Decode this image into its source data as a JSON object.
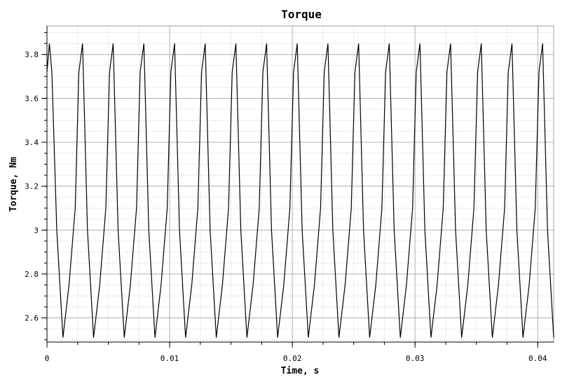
{
  "chart_data": {
    "type": "line",
    "title": "Torque",
    "xlabel": "Time, s",
    "ylabel": "Torque, Nm",
    "xlim": [
      0,
      0.0413
    ],
    "ylim": [
      2.49,
      3.93
    ],
    "x_ticks": [
      0,
      0.01,
      0.02,
      0.03,
      0.04
    ],
    "x_tick_labels": [
      "0",
      "0.01",
      "0.02",
      "0.03",
      "0.04"
    ],
    "y_ticks": [
      2.6,
      2.8,
      3.0,
      3.2,
      3.4,
      3.6,
      3.8
    ],
    "y_tick_labels": [
      "2.6",
      "2.8",
      "3",
      "3.2",
      "3.4",
      "3.6",
      "3.8"
    ],
    "grid": true,
    "line_color": "#000000",
    "series": [
      {
        "x": [
          0,
          0.0002,
          0.0004,
          0.0008,
          0.0013,
          0.0018,
          0.0023,
          0.0026,
          0.0029,
          0.0033,
          0.0038,
          0.0043,
          0.0048,
          0.0051,
          0.0054,
          0.0058,
          0.0063,
          0.0068,
          0.0073,
          0.0076,
          0.0079,
          0.0083,
          0.0088,
          0.0093,
          0.0098,
          0.0101,
          0.0104,
          0.0108,
          0.0113,
          0.0118,
          0.0123,
          0.0126,
          0.0129,
          0.0133,
          0.0138,
          0.0143,
          0.0148,
          0.0151,
          0.0154,
          0.0158,
          0.0163,
          0.0168,
          0.0173,
          0.0176,
          0.0179,
          0.0183,
          0.0188,
          0.0193,
          0.0198,
          0.0201,
          0.0204,
          0.0208,
          0.0213,
          0.0218,
          0.0223,
          0.0226,
          0.0229,
          0.0233,
          0.0238,
          0.0243,
          0.0248,
          0.0251,
          0.0254,
          0.0258,
          0.0263,
          0.0268,
          0.0273,
          0.0276,
          0.0279,
          0.0283,
          0.0288,
          0.0293,
          0.0298,
          0.0301,
          0.0304,
          0.0308,
          0.0313,
          0.0318,
          0.0323,
          0.0326,
          0.0329,
          0.0333,
          0.0338,
          0.0343,
          0.0348,
          0.0351,
          0.0354,
          0.0358,
          0.0363,
          0.0368,
          0.0373,
          0.0376,
          0.0379,
          0.0383,
          0.0388,
          0.0393,
          0.0398,
          0.0401,
          0.0404,
          0.0408,
          0.0413
        ],
        "y": [
          3.72,
          3.85,
          3.72,
          3.0,
          2.51,
          2.75,
          3.1,
          3.72,
          3.85,
          3.0,
          2.51,
          2.75,
          3.1,
          3.72,
          3.85,
          3.0,
          2.51,
          2.75,
          3.1,
          3.72,
          3.85,
          3.0,
          2.51,
          2.75,
          3.1,
          3.72,
          3.85,
          3.0,
          2.51,
          2.75,
          3.1,
          3.72,
          3.85,
          3.0,
          2.51,
          2.75,
          3.1,
          3.72,
          3.85,
          3.0,
          2.51,
          2.75,
          3.1,
          3.72,
          3.85,
          3.0,
          2.51,
          2.75,
          3.1,
          3.72,
          3.85,
          3.0,
          2.51,
          2.75,
          3.1,
          3.72,
          3.85,
          3.0,
          2.51,
          2.75,
          3.1,
          3.72,
          3.85,
          3.0,
          2.51,
          2.75,
          3.1,
          3.72,
          3.85,
          3.0,
          2.51,
          2.75,
          3.1,
          3.72,
          3.85,
          3.0,
          2.51,
          2.75,
          3.1,
          3.72,
          3.85,
          3.0,
          2.51,
          2.75,
          3.1,
          3.72,
          3.85,
          3.0,
          2.51,
          2.75,
          3.1,
          3.72,
          3.85,
          3.0,
          2.51,
          2.75,
          3.1,
          3.72,
          3.85,
          3.0,
          2.51
        ]
      }
    ]
  }
}
